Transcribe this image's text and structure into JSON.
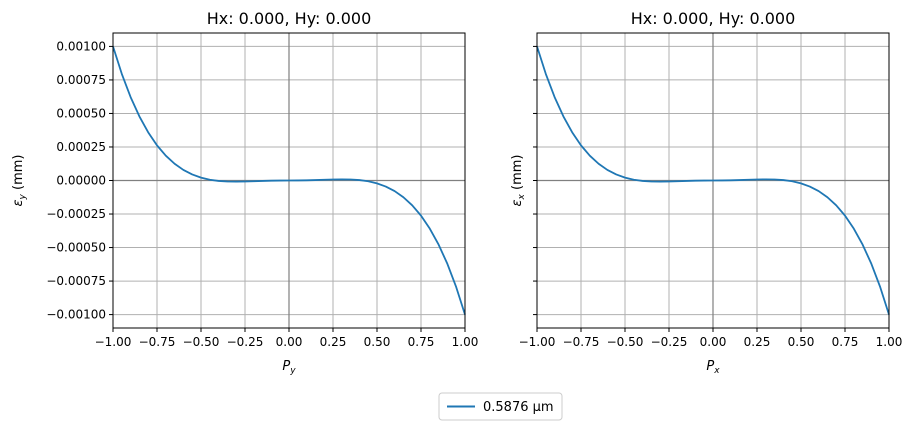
{
  "chart_data": [
    {
      "type": "line",
      "title": "Hx: 0.000, Hy: 0.000",
      "xlabel_main": "P",
      "xlabel_sub": "y",
      "ylabel_main": "ε",
      "ylabel_sub": "y",
      "ylabel_unit": " (mm)",
      "xlim": [
        -1.0,
        1.0
      ],
      "ylim": [
        -0.0011,
        0.0011
      ],
      "xticks": [
        -1.0,
        -0.75,
        -0.5,
        -0.25,
        0.0,
        0.25,
        0.5,
        0.75,
        1.0
      ],
      "xtick_labels": [
        "−1.00",
        "−0.75",
        "−0.50",
        "−0.25",
        "0.00",
        "0.25",
        "0.50",
        "0.75",
        "1.00"
      ],
      "yticks": [
        0.001,
        0.00075,
        0.0005,
        0.00025,
        0.0,
        -0.00025,
        -0.0005,
        -0.00075,
        -0.001
      ],
      "ytick_labels": [
        "0.00100",
        "0.00075",
        "0.00050",
        "0.00025",
        "0.00000",
        "−0.00025",
        "−0.00050",
        "−0.00075",
        "−0.00100"
      ],
      "show_ytick_labels": true,
      "grid": true,
      "series": [
        {
          "name": "0.5876 µm",
          "color": "#1f77b4",
          "x": [
            -1.0,
            -0.95,
            -0.9,
            -0.85,
            -0.8,
            -0.75,
            -0.7,
            -0.65,
            -0.6,
            -0.55,
            -0.5,
            -0.45,
            -0.4,
            -0.35,
            -0.3,
            -0.25,
            -0.2,
            -0.15,
            -0.1,
            -0.05,
            0.0,
            0.05,
            0.1,
            0.15,
            0.2,
            0.25,
            0.3,
            0.35,
            0.4,
            0.45,
            0.5,
            0.55,
            0.6,
            0.65,
            0.7,
            0.75,
            0.8,
            0.85,
            0.9,
            0.95,
            1.0
          ],
          "y": [
            0.001,
            0.000795,
            0.000622,
            0.000478,
            0.000359,
            0.000262,
            0.000185,
            0.000125,
            7.88e-05,
            4.51e-05,
            2.14e-05,
            5.9e-06,
            -3.2e-06,
            -7.6e-06,
            -8.6e-06,
            -7.6e-06,
            -5.5e-06,
            -3.3e-06,
            -1.5e-06,
            -4e-07,
            0.0,
            4e-07,
            1.5e-06,
            3.3e-06,
            5.5e-06,
            7.6e-06,
            8.6e-06,
            7.6e-06,
            3.2e-06,
            -5.9e-06,
            -2.14e-05,
            -4.51e-05,
            -7.88e-05,
            -0.000125,
            -0.000185,
            -0.000262,
            -0.000359,
            -0.000478,
            -0.000622,
            -0.000795,
            -0.001
          ]
        }
      ]
    },
    {
      "type": "line",
      "title": "Hx: 0.000, Hy: 0.000",
      "xlabel_main": "P",
      "xlabel_sub": "x",
      "ylabel_main": "ε",
      "ylabel_sub": "x",
      "ylabel_unit": " (mm)",
      "xlim": [
        -1.0,
        1.0
      ],
      "ylim": [
        -0.0011,
        0.0011
      ],
      "xticks": [
        -1.0,
        -0.75,
        -0.5,
        -0.25,
        0.0,
        0.25,
        0.5,
        0.75,
        1.0
      ],
      "xtick_labels": [
        "−1.00",
        "−0.75",
        "−0.50",
        "−0.25",
        "0.00",
        "0.25",
        "0.50",
        "0.75",
        "1.00"
      ],
      "yticks": [
        0.001,
        0.00075,
        0.0005,
        0.00025,
        0.0,
        -0.00025,
        -0.0005,
        -0.00075,
        -0.001
      ],
      "show_ytick_labels": false,
      "grid": true,
      "series": [
        {
          "name": "0.5876 µm",
          "color": "#1f77b4",
          "x": [
            -1.0,
            -0.95,
            -0.9,
            -0.85,
            -0.8,
            -0.75,
            -0.7,
            -0.65,
            -0.6,
            -0.55,
            -0.5,
            -0.45,
            -0.4,
            -0.35,
            -0.3,
            -0.25,
            -0.2,
            -0.15,
            -0.1,
            -0.05,
            0.0,
            0.05,
            0.1,
            0.15,
            0.2,
            0.25,
            0.3,
            0.35,
            0.4,
            0.45,
            0.5,
            0.55,
            0.6,
            0.65,
            0.7,
            0.75,
            0.8,
            0.85,
            0.9,
            0.95,
            1.0
          ],
          "y": [
            0.001,
            0.000795,
            0.000622,
            0.000478,
            0.000359,
            0.000262,
            0.000185,
            0.000125,
            7.88e-05,
            4.51e-05,
            2.14e-05,
            5.9e-06,
            -3.2e-06,
            -7.6e-06,
            -8.6e-06,
            -7.6e-06,
            -5.5e-06,
            -3.3e-06,
            -1.5e-06,
            -4e-07,
            0.0,
            4e-07,
            1.5e-06,
            3.3e-06,
            5.5e-06,
            7.6e-06,
            8.6e-06,
            7.6e-06,
            3.2e-06,
            -5.9e-06,
            -2.14e-05,
            -4.51e-05,
            -7.88e-05,
            -0.000125,
            -0.000185,
            -0.000262,
            -0.000359,
            -0.000478,
            -0.000622,
            -0.000795,
            -0.001
          ]
        }
      ]
    }
  ],
  "legend": {
    "placement": "bottom-center",
    "entries": [
      {
        "label": "0.5876 µm",
        "color": "#1f77b4"
      }
    ]
  }
}
